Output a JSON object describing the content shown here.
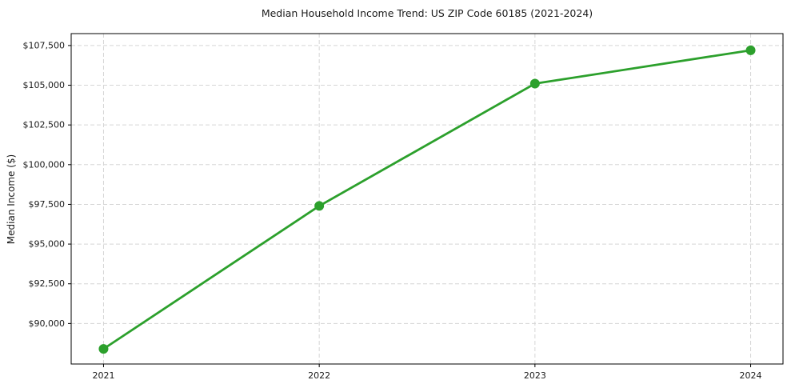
{
  "chart_data": {
    "type": "line",
    "title": "Median Household Income Trend: US ZIP Code 60185 (2021-2024)",
    "xlabel": "",
    "ylabel": "Median Income ($)",
    "x": [
      2021,
      2022,
      2023,
      2024
    ],
    "values": [
      88400,
      97400,
      105100,
      107200
    ],
    "x_tick_labels": [
      "2021",
      "2022",
      "2023",
      "2024"
    ],
    "y_ticks": [
      90000,
      92500,
      95000,
      97500,
      100000,
      102500,
      105000,
      107500
    ],
    "y_tick_labels": [
      "$90,000",
      "$92,500",
      "$95,000",
      "$97,500",
      "$100,000",
      "$102,500",
      "$105,000",
      "$107,500"
    ],
    "xlim": [
      2020.85,
      2024.15
    ],
    "ylim": [
      87450,
      108250
    ],
    "grid": true,
    "legend": "none",
    "line_color": "#2ca02c",
    "marker": "circle",
    "marker_radius": 6,
    "background": "#ffffff"
  }
}
